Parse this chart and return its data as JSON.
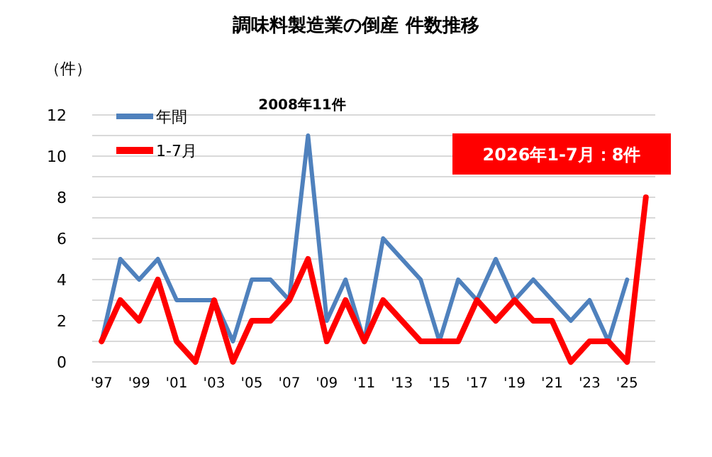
{
  "chart_data": {
    "type": "line",
    "title": "調味料製造業の倒産 件数推移",
    "ylabel": "（件）",
    "categories": [
      "'97",
      null,
      "'99",
      null,
      "'01",
      null,
      "'03",
      null,
      "'05",
      null,
      "'07",
      null,
      "'09",
      null,
      "'11",
      null,
      "'13",
      null,
      "'15",
      null,
      "'17",
      null,
      "'19",
      null,
      "'21",
      null,
      "'23",
      null,
      "'25",
      null
    ],
    "series": [
      {
        "name": "年間",
        "color": "#4f81bd",
        "values": [
          1,
          5,
          4,
          5,
          3,
          3,
          3,
          1,
          4,
          4,
          3,
          11,
          2,
          4,
          1,
          6,
          5,
          4,
          1,
          4,
          3,
          5,
          3,
          4,
          3,
          2,
          3,
          1,
          4,
          null
        ]
      },
      {
        "name": "1-7月",
        "color": "#ff0000",
        "values": [
          1,
          3,
          2,
          4,
          1,
          0,
          3,
          0,
          2,
          2,
          3,
          5,
          1,
          3,
          1,
          3,
          2,
          1,
          1,
          1,
          3,
          2,
          3,
          2,
          2,
          0,
          1,
          1,
          0,
          8
        ]
      }
    ],
    "ylim": [
      0,
      12
    ],
    "yticks": [
      0,
      {
        "value": 1,
        "label": null
      },
      2,
      {
        "value": 3,
        "label": null
      },
      4,
      {
        "value": 5,
        "label": null
      },
      6,
      {
        "value": 7,
        "label": null
      },
      8,
      {
        "value": 9,
        "label": null
      },
      10,
      {
        "value": 11,
        "label": null
      },
      12
    ],
    "grid": "y",
    "legend": "top left",
    "annotations": [
      "2008年11件",
      "2026年1-7月：8件"
    ]
  }
}
